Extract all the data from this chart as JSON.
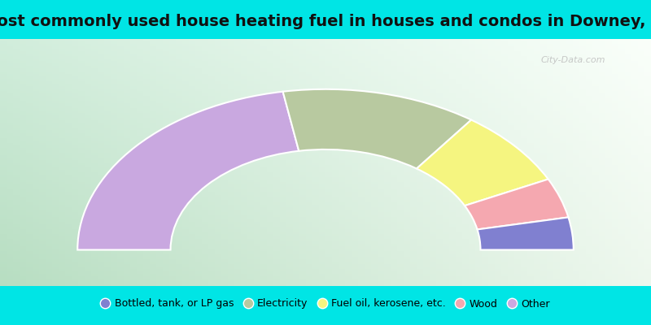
{
  "title": "Most commonly used house heating fuel in houses and condos in Downey, ID",
  "segments": [
    {
      "label": "Other",
      "value": 44.5,
      "color": "#c9a8e0"
    },
    {
      "label": "Electricity",
      "value": 25.5,
      "color": "#b8c9a0"
    },
    {
      "label": "Fuel oil, kerosene, etc.",
      "value": 15.5,
      "color": "#f5f580"
    },
    {
      "label": "Wood",
      "value": 8.0,
      "color": "#f5a8b0"
    },
    {
      "label": "Bottled, tank, or LP gas",
      "value": 6.5,
      "color": "#8080d0"
    }
  ],
  "legend_order": [
    "Bottled, tank, or LP gas",
    "Electricity",
    "Fuel oil, kerosene, etc.",
    "Wood",
    "Other"
  ],
  "bg_cyan": "#00e5e5",
  "title_fontsize": 14,
  "legend_fontsize": 9,
  "watermark": "City-Data.com",
  "outer_r": 0.8,
  "inner_r": 0.5,
  "grad_corners": {
    "bl": [
      0.72,
      0.87,
      0.76
    ],
    "br": [
      0.93,
      0.97,
      0.93
    ],
    "tl": [
      0.82,
      0.93,
      0.86
    ],
    "tr": [
      0.98,
      1.0,
      0.98
    ]
  }
}
